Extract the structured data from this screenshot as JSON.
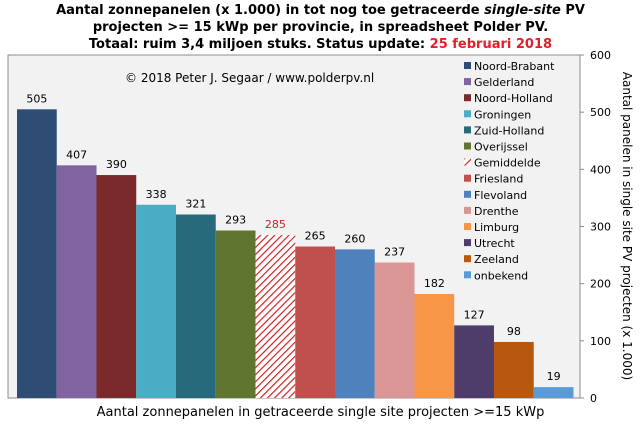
{
  "title": {
    "line1_a": "Aantal zonnepanelen (x 1.000) in tot nog toe getraceerde ",
    "line1_em": "single-site",
    "line1_b": " PV",
    "line2": "projecten >= 15 kWp per provincie, in spreadsheet Polder PV.",
    "line3_a": "Totaal: ruim 3,4 miljoen stuks. Status update: ",
    "line3_date": "25 februari 2018"
  },
  "copyright": "© 2018 Peter J. Segaar / www.polderpv.nl",
  "chart_data": {
    "type": "bar",
    "categories": [
      "Noord-Brabant",
      "Gelderland",
      "Noord-Holland",
      "Groningen",
      "Zuid-Holland",
      "Overijssel",
      "Gemiddelde",
      "Friesland",
      "Flevoland",
      "Drenthe",
      "Limburg",
      "Utrecht",
      "Zeeland",
      "onbekend"
    ],
    "values": [
      505,
      407,
      390,
      338,
      321,
      293,
      285,
      265,
      260,
      237,
      182,
      127,
      98,
      19
    ],
    "colors": [
      "#2f4d74",
      "#8063a0",
      "#7a2a2a",
      "#4bacc6",
      "#276a7c",
      "#5f7530",
      "#cc2222",
      "#c0504d",
      "#4f81bd",
      "#d99694",
      "#f79646",
      "#4e3c6a",
      "#b8580e",
      "#5b9bd5"
    ],
    "hatched": "Gemiddelde",
    "xlabel": "Aantal zonnepanelen in getraceerde single site projecten >=15 kWp",
    "ylabel": "Aantal panelen in single site PV projecten (x 1.000)",
    "ylim": [
      0,
      600
    ],
    "yticks": [
      0,
      100,
      200,
      300,
      400,
      500,
      600
    ],
    "grid": false,
    "legend": "top-right"
  }
}
